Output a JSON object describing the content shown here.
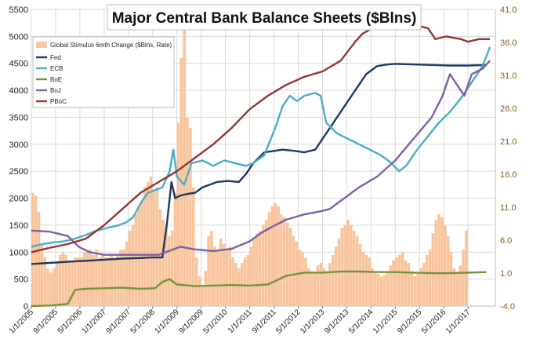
{
  "chart_data": {
    "type": "line",
    "title": "Major Central Bank Balance Sheets ($Blns)",
    "x_labels": [
      "1/1/2005",
      "9/1/2005",
      "5/1/2006",
      "1/1/2007",
      "9/1/2007",
      "5/1/2008",
      "1/1/2009",
      "9/1/2009",
      "5/1/2010",
      "1/1/2011",
      "9/1/2011",
      "5/1/2012",
      "1/1/2013",
      "9/1/2013",
      "5/1/2014",
      "1/1/2015",
      "9/1/2015",
      "5/1/2016",
      "1/1/2017"
    ],
    "x_range": [
      2005.0,
      2017.75
    ],
    "y_left": {
      "ticks": [
        0,
        500,
        1000,
        1500,
        2000,
        2500,
        3000,
        3500,
        4000,
        4500,
        5000,
        5500
      ],
      "range": [
        0,
        5500
      ]
    },
    "y_right": {
      "ticks": [
        "-4.0",
        "1.0",
        "6.0",
        "11.0",
        "16.0",
        "21.0",
        "26.0",
        "31.0",
        "36.0",
        "41.0"
      ],
      "range": [
        -4,
        41
      ]
    },
    "legend": {
      "placement": "top-left",
      "grid": true
    },
    "bars": {
      "name": "Global Stimulus 6mth Change ($Blns, Rate)",
      "color": "#f8c49b",
      "start": 2005.0,
      "step": 0.0833,
      "values": [
        2100,
        2050,
        1750,
        1150,
        900,
        700,
        620,
        700,
        800,
        950,
        1000,
        950,
        850,
        850,
        900,
        900,
        900,
        1000,
        1000,
        1050,
        950,
        1050,
        900,
        950,
        900,
        900,
        950,
        850,
        950,
        1050,
        1050,
        1200,
        1400,
        1500,
        1700,
        1850,
        1950,
        2200,
        2300,
        2400,
        2150,
        2200,
        1800,
        1600,
        1500,
        1300,
        1400,
        2100,
        3400,
        4600,
        5200,
        3500,
        3300,
        2200,
        900,
        550,
        350,
        650,
        1300,
        1400,
        1100,
        1050,
        1250,
        1150,
        1050,
        1100,
        900,
        800,
        700,
        800,
        900,
        950,
        1100,
        1250,
        1350,
        1400,
        1500,
        1600,
        1750,
        1850,
        1900,
        1850,
        1700,
        1650,
        1550,
        1450,
        1300,
        1200,
        1050,
        1000,
        900,
        700,
        650,
        600,
        750,
        800,
        700,
        650,
        800,
        950,
        1100,
        1250,
        1450,
        1500,
        1600,
        1500,
        1400,
        1300,
        1150,
        1000,
        950,
        900,
        700,
        650,
        600,
        550,
        580,
        650,
        750,
        850,
        900,
        950,
        1000,
        850,
        800,
        650,
        550,
        600,
        700,
        800,
        950,
        1050,
        1350,
        1600,
        1700,
        1650,
        1500,
        1300,
        1000,
        700,
        600,
        750,
        1050,
        1400
      ]
    },
    "series": [
      {
        "name": "Fed",
        "color": "#1f3864",
        "points": [
          [
            2005.0,
            780
          ],
          [
            2005.5,
            800
          ],
          [
            2006.0,
            820
          ],
          [
            2006.5,
            840
          ],
          [
            2007.0,
            860
          ],
          [
            2007.5,
            880
          ],
          [
            2008.0,
            890
          ],
          [
            2008.3,
            900
          ],
          [
            2008.6,
            900
          ],
          [
            2008.72,
            1500
          ],
          [
            2008.85,
            2300
          ],
          [
            2008.95,
            2000
          ],
          [
            2009.1,
            2050
          ],
          [
            2009.3,
            2080
          ],
          [
            2009.5,
            2100
          ],
          [
            2009.7,
            2200
          ],
          [
            2009.9,
            2250
          ],
          [
            2010.1,
            2300
          ],
          [
            2010.4,
            2320
          ],
          [
            2010.7,
            2300
          ],
          [
            2010.9,
            2450
          ],
          [
            2011.1,
            2650
          ],
          [
            2011.4,
            2850
          ],
          [
            2011.6,
            2870
          ],
          [
            2011.9,
            2900
          ],
          [
            2012.2,
            2880
          ],
          [
            2012.5,
            2850
          ],
          [
            2012.8,
            2900
          ],
          [
            2013.0,
            3100
          ],
          [
            2013.3,
            3400
          ],
          [
            2013.6,
            3700
          ],
          [
            2013.9,
            4000
          ],
          [
            2014.2,
            4300
          ],
          [
            2014.5,
            4450
          ],
          [
            2014.8,
            4480
          ],
          [
            2015.0,
            4490
          ],
          [
            2015.5,
            4480
          ],
          [
            2016.0,
            4470
          ],
          [
            2016.5,
            4460
          ],
          [
            2017.0,
            4460
          ],
          [
            2017.5,
            4470
          ]
        ]
      },
      {
        "name": "ECB",
        "color": "#4bacc6",
        "points": [
          [
            2005.0,
            1100
          ],
          [
            2005.3,
            1150
          ],
          [
            2005.6,
            1180
          ],
          [
            2005.9,
            1200
          ],
          [
            2006.2,
            1250
          ],
          [
            2006.5,
            1320
          ],
          [
            2006.8,
            1400
          ],
          [
            2007.1,
            1450
          ],
          [
            2007.4,
            1500
          ],
          [
            2007.6,
            1550
          ],
          [
            2007.8,
            1650
          ],
          [
            2008.0,
            1900
          ],
          [
            2008.2,
            2100
          ],
          [
            2008.4,
            2150
          ],
          [
            2008.6,
            2200
          ],
          [
            2008.8,
            2500
          ],
          [
            2008.9,
            2900
          ],
          [
            2009.0,
            2400
          ],
          [
            2009.2,
            2250
          ],
          [
            2009.4,
            2650
          ],
          [
            2009.7,
            2700
          ],
          [
            2010.0,
            2600
          ],
          [
            2010.3,
            2700
          ],
          [
            2010.6,
            2650
          ],
          [
            2010.9,
            2600
          ],
          [
            2011.1,
            2650
          ],
          [
            2011.4,
            2800
          ],
          [
            2011.7,
            3300
          ],
          [
            2011.9,
            3700
          ],
          [
            2012.1,
            3900
          ],
          [
            2012.3,
            3800
          ],
          [
            2012.5,
            3900
          ],
          [
            2012.8,
            3950
          ],
          [
            2012.95,
            3900
          ],
          [
            2013.1,
            3400
          ],
          [
            2013.4,
            3200
          ],
          [
            2013.7,
            3100
          ],
          [
            2014.0,
            3000
          ],
          [
            2014.3,
            2900
          ],
          [
            2014.6,
            2800
          ],
          [
            2014.9,
            2650
          ],
          [
            2015.1,
            2500
          ],
          [
            2015.3,
            2600
          ],
          [
            2015.6,
            2900
          ],
          [
            2015.9,
            3150
          ],
          [
            2016.2,
            3400
          ],
          [
            2016.5,
            3600
          ],
          [
            2016.8,
            3850
          ],
          [
            2017.1,
            4150
          ],
          [
            2017.4,
            4450
          ],
          [
            2017.6,
            4800
          ]
        ]
      },
      {
        "name": "BoE",
        "color": "#77933c",
        "points": [
          [
            2005.0,
            0
          ],
          [
            2005.5,
            10
          ],
          [
            2006.0,
            40
          ],
          [
            2006.2,
            300
          ],
          [
            2006.5,
            320
          ],
          [
            2007.0,
            330
          ],
          [
            2007.5,
            340
          ],
          [
            2008.0,
            320
          ],
          [
            2008.4,
            330
          ],
          [
            2008.6,
            450
          ],
          [
            2008.8,
            500
          ],
          [
            2009.0,
            400
          ],
          [
            2009.5,
            370
          ],
          [
            2010.0,
            380
          ],
          [
            2010.5,
            390
          ],
          [
            2011.0,
            380
          ],
          [
            2011.5,
            400
          ],
          [
            2012.0,
            560
          ],
          [
            2012.5,
            620
          ],
          [
            2013.0,
            620
          ],
          [
            2013.5,
            640
          ],
          [
            2014.0,
            640
          ],
          [
            2014.5,
            630
          ],
          [
            2015.0,
            630
          ],
          [
            2015.5,
            620
          ],
          [
            2016.0,
            610
          ],
          [
            2016.5,
            610
          ],
          [
            2017.0,
            620
          ],
          [
            2017.5,
            630
          ]
        ]
      },
      {
        "name": "BoJ",
        "color": "#7f5fa8",
        "points": [
          [
            2005.0,
            1400
          ],
          [
            2005.5,
            1380
          ],
          [
            2006.0,
            1300
          ],
          [
            2006.3,
            1100
          ],
          [
            2006.6,
            1000
          ],
          [
            2007.0,
            950
          ],
          [
            2007.5,
            950
          ],
          [
            2008.0,
            950
          ],
          [
            2008.5,
            950
          ],
          [
            2008.9,
            1050
          ],
          [
            2009.1,
            1100
          ],
          [
            2009.5,
            1050
          ],
          [
            2010.0,
            1020
          ],
          [
            2010.5,
            1060
          ],
          [
            2011.0,
            1200
          ],
          [
            2011.3,
            1350
          ],
          [
            2011.7,
            1500
          ],
          [
            2012.0,
            1600
          ],
          [
            2012.5,
            1700
          ],
          [
            2012.9,
            1750
          ],
          [
            2013.2,
            1800
          ],
          [
            2013.6,
            2000
          ],
          [
            2014.0,
            2200
          ],
          [
            2014.5,
            2400
          ],
          [
            2015.0,
            2700
          ],
          [
            2015.5,
            3100
          ],
          [
            2016.0,
            3500
          ],
          [
            2016.3,
            3900
          ],
          [
            2016.5,
            4300
          ],
          [
            2016.7,
            4100
          ],
          [
            2016.9,
            3900
          ],
          [
            2017.1,
            4300
          ],
          [
            2017.4,
            4400
          ],
          [
            2017.6,
            4550
          ]
        ]
      },
      {
        "name": "PBoC",
        "color": "#943634",
        "points": [
          [
            2005.0,
            1000
          ],
          [
            2005.5,
            1080
          ],
          [
            2006.0,
            1150
          ],
          [
            2006.5,
            1250
          ],
          [
            2007.0,
            1500
          ],
          [
            2007.5,
            1800
          ],
          [
            2008.0,
            2100
          ],
          [
            2008.5,
            2300
          ],
          [
            2009.0,
            2500
          ],
          [
            2009.5,
            2750
          ],
          [
            2010.0,
            3000
          ],
          [
            2010.5,
            3300
          ],
          [
            2011.0,
            3650
          ],
          [
            2011.5,
            3900
          ],
          [
            2012.0,
            4100
          ],
          [
            2012.5,
            4250
          ],
          [
            2013.0,
            4350
          ],
          [
            2013.5,
            4550
          ],
          [
            2013.9,
            4900
          ],
          [
            2014.1,
            5050
          ],
          [
            2014.5,
            5200
          ],
          [
            2014.8,
            5350
          ],
          [
            2015.0,
            5400
          ],
          [
            2015.3,
            5350
          ],
          [
            2015.6,
            5200
          ],
          [
            2015.9,
            5150
          ],
          [
            2016.1,
            4950
          ],
          [
            2016.4,
            5000
          ],
          [
            2016.8,
            4950
          ],
          [
            2017.0,
            4900
          ],
          [
            2017.3,
            4950
          ],
          [
            2017.6,
            4950
          ]
        ]
      }
    ]
  }
}
